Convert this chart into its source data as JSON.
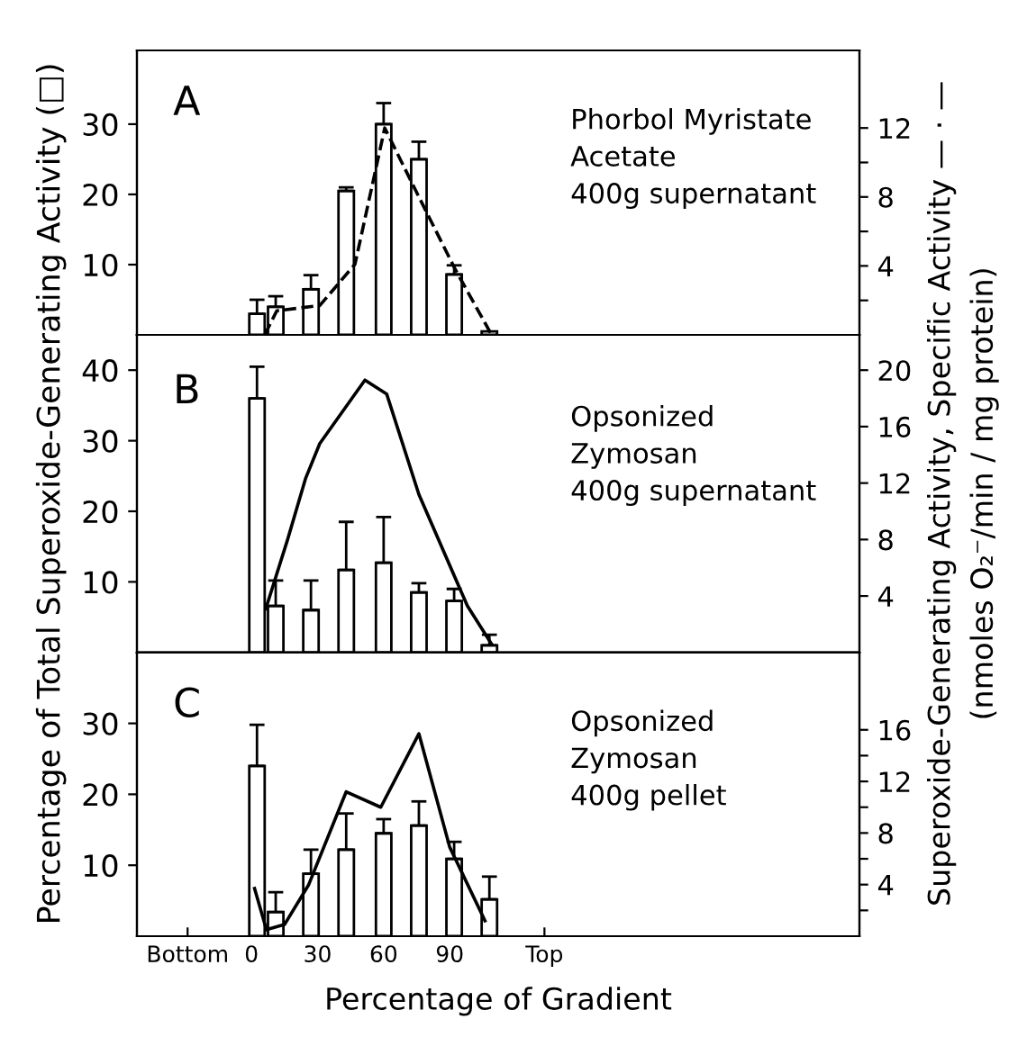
{
  "chart_data": [
    {
      "type": "bar",
      "xlim": [
        -52,
        276
      ],
      "ylim": [
        0,
        40.5
      ],
      "yticks": [
        10,
        20,
        30
      ],
      "y2lim": [
        0,
        16.5
      ],
      "y2ticks": [
        {
          "value": 2,
          "label": null
        },
        4,
        {
          "value": 6,
          "label": null
        },
        8,
        {
          "value": 10,
          "label": null
        },
        12
      ],
      "tick_labels": "y",
      "annotations": [
        "A",
        "Phorbol Myristate\nAcetate\n400g supernatant"
      ],
      "series": [
        {
          "type": "bar",
          "color": "#ffffff",
          "x": [
            2.5,
            11,
            27,
            43,
            60,
            76,
            92,
            108
          ],
          "values": [
            3,
            4,
            6.5,
            20.5,
            30,
            25,
            8.6,
            0.5
          ],
          "errors": [
            [
              3,
              5
            ],
            [
              4,
              5.5
            ],
            [
              6.5,
              8.5
            ],
            [
              20.5,
              21
            ],
            [
              30,
              33
            ],
            [
              25,
              27.5
            ],
            [
              8.6,
              9.9
            ],
            null
          ]
        },
        {
          "type": "line",
          "axis": "y2",
          "color": "#000000",
          "line_style": "dashed",
          "x": [
            6,
            11.5,
            31,
            47,
            60.5,
            76,
            92.5,
            109
          ],
          "values": [
            0,
            1.4,
            1.7,
            4.1,
            12,
            8,
            3.8,
            0
          ]
        }
      ]
    },
    {
      "type": "bar",
      "xlim": [
        -52,
        276
      ],
      "ylim": [
        0,
        45
      ],
      "yticks": [
        10,
        20,
        30,
        40
      ],
      "y2lim": [
        0,
        22.5
      ],
      "y2ticks": [
        4,
        8,
        12,
        16,
        20
      ],
      "tick_labels": "y",
      "ylabel": "Percentage of Total Superoxide-Generating Activity (□)",
      "y2label": "Superoxide-Generating Activity, Specific Activity — · —\n(nmoles O₂⁻/min / mg protein)",
      "annotations": [
        "B",
        "Opsonized\nZymosan\n400g supernatant"
      ],
      "series": [
        {
          "type": "bar",
          "color": "#ffffff",
          "x": [
            2.5,
            11,
            27,
            43,
            60,
            76,
            92,
            108
          ],
          "values": [
            36,
            6.6,
            6,
            11.7,
            12.7,
            8.5,
            7.3,
            1
          ],
          "errors": [
            [
              36,
              40.5
            ],
            [
              6.6,
              10.2
            ],
            [
              6,
              10.2
            ],
            [
              11.7,
              18.5
            ],
            [
              12.7,
              19.2
            ],
            [
              8.5,
              9.8
            ],
            [
              7.3,
              9
            ],
            [
              1,
              2.5
            ]
          ]
        },
        {
          "type": "line",
          "axis": "y2",
          "color": "#000000",
          "line_style": "solid",
          "x": [
            6.5,
            16.4,
            24.5,
            31,
            51.5,
            61.4,
            76,
            98,
            109
          ],
          "values": [
            3.1,
            8,
            12.3,
            14.8,
            19.3,
            18.3,
            11.2,
            3.3,
            0.6
          ]
        }
      ]
    },
    {
      "type": "bar",
      "xlim": [
        -52,
        276
      ],
      "xticks": [
        {
          "value": -29,
          "label": "Bottom"
        },
        0,
        30,
        60,
        90,
        {
          "value": 133,
          "label": "Top"
        }
      ],
      "ylim": [
        0,
        40
      ],
      "yticks": [
        10,
        20,
        30
      ],
      "y2lim": [
        0,
        22
      ],
      "y2ticks": [
        {
          "value": 2,
          "label": null
        },
        4,
        {
          "value": 6,
          "label": null
        },
        8,
        {
          "value": 10,
          "label": null
        },
        12,
        {
          "value": 14,
          "label": null
        },
        16
      ],
      "xlabel": "Percentage of Gradient",
      "annotations": [
        "C",
        "Opsonized\nZymosan\n400g pellet"
      ],
      "series": [
        {
          "type": "bar",
          "color": "#ffffff",
          "x": [
            2.5,
            11,
            27,
            43,
            60,
            76,
            92,
            108
          ],
          "values": [
            24,
            3.4,
            8.8,
            12.2,
            14.5,
            15.6,
            10.9,
            5.2
          ],
          "errors": [
            [
              24,
              29.8
            ],
            [
              3.4,
              6.2
            ],
            [
              8.8,
              12.2
            ],
            [
              12.2,
              17.3
            ],
            [
              14.5,
              16.5
            ],
            [
              15.6,
              19
            ],
            [
              10.9,
              13.3
            ],
            [
              5.2,
              8.4
            ]
          ]
        },
        {
          "type": "line",
          "axis": "y2",
          "color": "#000000",
          "line_style": "solid",
          "x": [
            1.4,
            6.8,
            15,
            26,
            43,
            58.7,
            76,
            90,
            106
          ],
          "values": [
            3.7,
            0.5,
            0.9,
            4,
            11.2,
            10,
            15.7,
            6.9,
            1.2
          ]
        }
      ]
    }
  ]
}
